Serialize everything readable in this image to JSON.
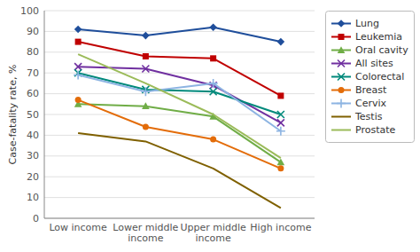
{
  "chart_data": {
    "type": "line",
    "categories": [
      "Low income",
      "Lower middle\nincome",
      "Upper middle\nincome",
      "High income"
    ],
    "series": [
      {
        "name": "Lung",
        "color": "#1F4E9B",
        "marker": "diamond",
        "values": [
          91,
          88,
          92,
          85
        ]
      },
      {
        "name": "Leukemia",
        "color": "#C00000",
        "marker": "square",
        "values": [
          85,
          78,
          77,
          59
        ]
      },
      {
        "name": "Oral cavity",
        "color": "#70AD47",
        "marker": "triangle",
        "values": [
          55,
          54,
          49,
          27
        ]
      },
      {
        "name": "All sites",
        "color": "#7030A0",
        "marker": "x",
        "values": [
          73,
          72,
          64,
          46
        ]
      },
      {
        "name": "Colorectal",
        "color": "#00897B",
        "marker": "x",
        "values": [
          70,
          62,
          61,
          50
        ]
      },
      {
        "name": "Breast",
        "color": "#E36C09",
        "marker": "circle",
        "values": [
          57,
          44,
          38,
          24
        ]
      },
      {
        "name": "Cervix",
        "color": "#8DB4E2",
        "marker": "plus",
        "values": [
          69,
          61,
          65,
          42
        ]
      },
      {
        "name": "Testis",
        "color": "#7F6000",
        "marker": "none",
        "values": [
          41,
          37,
          24,
          5
        ]
      },
      {
        "name": "Prostate",
        "color": "#9BBB59",
        "marker": "none",
        "values": [
          79,
          65,
          50,
          29
        ]
      }
    ],
    "ylabel": "Case-fatality rate, %",
    "ylim": [
      0,
      100
    ],
    "yticks": [
      0,
      10,
      20,
      30,
      40,
      50,
      60,
      70,
      80,
      90,
      100
    ],
    "grid": true,
    "legend": "right"
  }
}
